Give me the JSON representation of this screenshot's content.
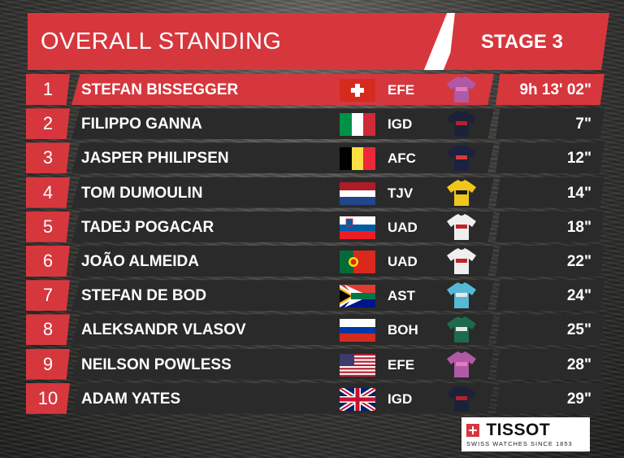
{
  "header": {
    "title": "OVERALL STANDING",
    "stage": "STAGE 3"
  },
  "rows": [
    {
      "pos": "1",
      "name": "STEFAN BISSEGGER",
      "team": "EFE",
      "time": "9h 13' 02\"",
      "flag": "switzerland",
      "jersey": "ef-purple-pink"
    },
    {
      "pos": "2",
      "name": "FILIPPO GANNA",
      "team": "IGD",
      "time": "7\"",
      "flag": "italy",
      "jersey": "ineos-navy"
    },
    {
      "pos": "3",
      "name": "JASPER PHILIPSEN",
      "team": "AFC",
      "time": "12\"",
      "flag": "belgium",
      "jersey": "alpecin-navy"
    },
    {
      "pos": "4",
      "name": "TOM DUMOULIN",
      "team": "TJV",
      "time": "14\"",
      "flag": "netherlands",
      "jersey": "jumbo-yellow"
    },
    {
      "pos": "5",
      "name": "TADEJ POGACAR",
      "team": "UAD",
      "time": "18\"",
      "flag": "slovenia",
      "jersey": "uae-white"
    },
    {
      "pos": "6",
      "name": "JOÃO ALMEIDA",
      "team": "UAD",
      "time": "22\"",
      "flag": "portugal",
      "jersey": "uae-white"
    },
    {
      "pos": "7",
      "name": "STEFAN DE BOD",
      "team": "AST",
      "time": "24\"",
      "flag": "south-africa",
      "jersey": "astana-blue"
    },
    {
      "pos": "8",
      "name": "ALEKSANDR VLASOV",
      "team": "BOH",
      "time": "25\"",
      "flag": "russia",
      "jersey": "bora-green"
    },
    {
      "pos": "9",
      "name": "NEILSON POWLESS",
      "team": "EFE",
      "time": "28\"",
      "flag": "usa",
      "jersey": "ef-purple-pink"
    },
    {
      "pos": "10",
      "name": "ADAM YATES",
      "team": "IGD",
      "time": "29\"",
      "flag": "united-kingdom",
      "jersey": "ineos-navy"
    }
  ],
  "sponsor": {
    "brand": "TISSOT",
    "tagline": "SWISS WATCHES SINCE 1853",
    "icon": "swiss-cross-icon"
  },
  "colors": {
    "accent": "#d6373d",
    "row_bg": "#2a2a2a"
  }
}
